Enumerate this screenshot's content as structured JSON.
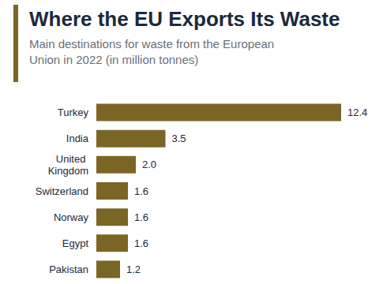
{
  "chart_data": {
    "type": "bar",
    "title": "Where the EU Exports Its Waste",
    "subtitle": "Main destinations for waste from the European Union in 2022 (in million tonnes)",
    "categories": [
      "Turkey",
      "India",
      "United Kingdom",
      "Switzerland",
      "Norway",
      "Egypt",
      "Pakistan"
    ],
    "values": [
      12.4,
      3.5,
      2.0,
      1.6,
      1.6,
      1.6,
      1.2
    ],
    "value_labels": [
      "12.4",
      "3.5",
      "2.0",
      "1.6",
      "1.6",
      "1.6",
      "1.2"
    ],
    "color": "#7a6524",
    "xlim": [
      0,
      12.4
    ],
    "orientation": "horizontal",
    "data_labels": true,
    "tick_labels": "y",
    "grid": false
  }
}
